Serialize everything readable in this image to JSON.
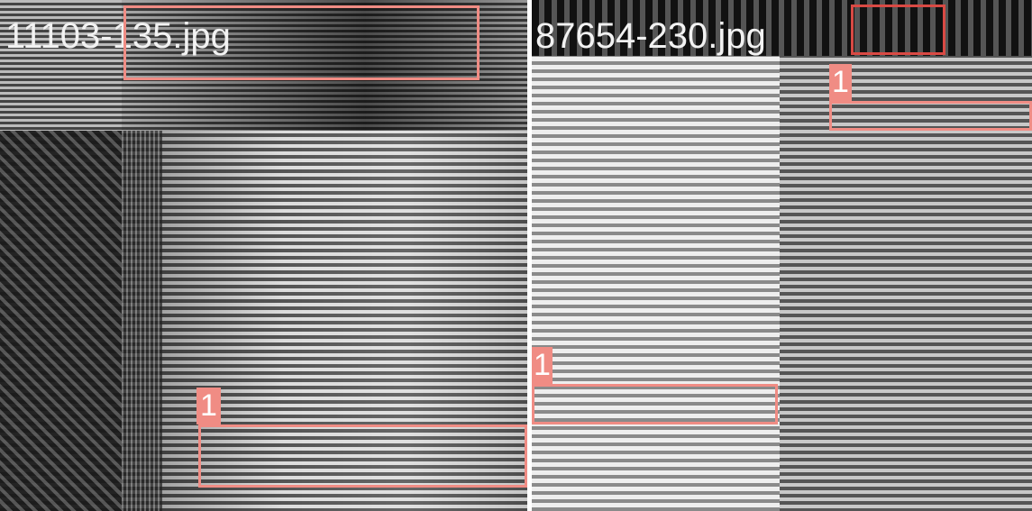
{
  "panels": [
    {
      "filename": "11103-135.jpg",
      "boxes": [
        {
          "label": "1"
        }
      ]
    },
    {
      "filename": "87654-230.jpg",
      "boxes": [
        {
          "label": "1"
        },
        {
          "label": "1"
        }
      ]
    }
  ]
}
